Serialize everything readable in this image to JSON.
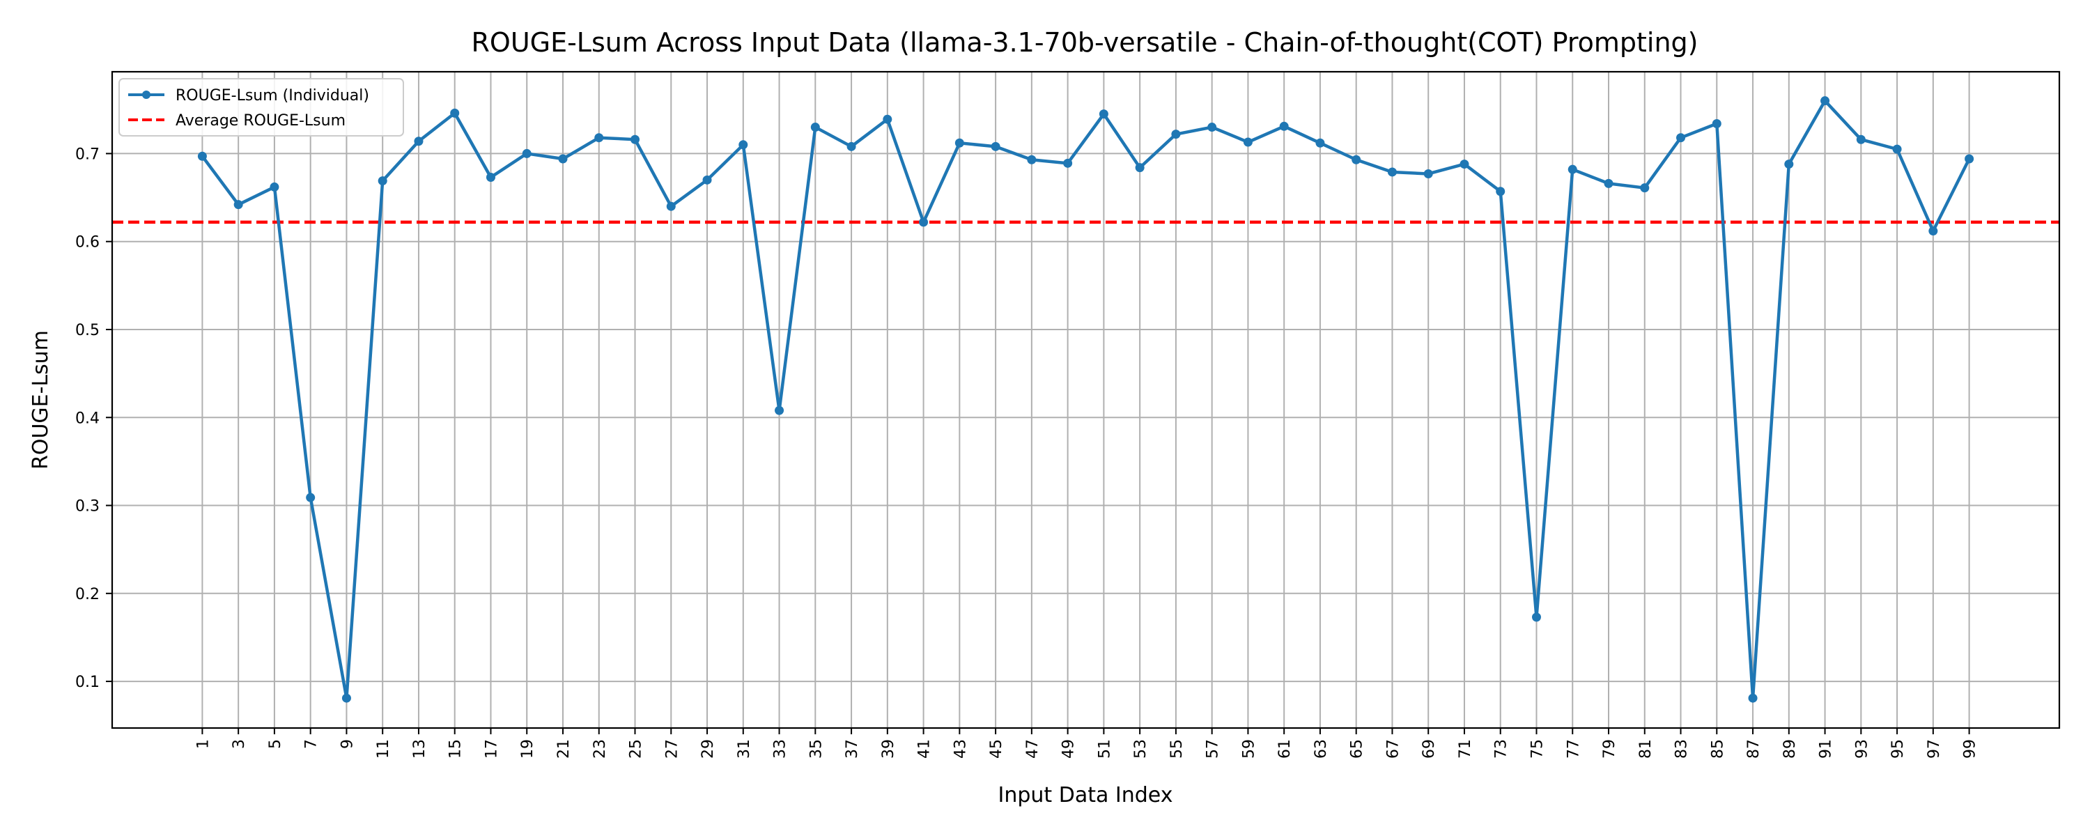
{
  "chart_data": {
    "type": "line",
    "title": "ROUGE-Lsum Across Input Data (llama-3.1-70b-versatile - Chain-of-thought(COT) Prompting)",
    "xlabel": "Input Data Index",
    "ylabel": "ROUGE-Lsum",
    "x": [
      1,
      3,
      5,
      7,
      9,
      11,
      13,
      15,
      17,
      19,
      21,
      23,
      25,
      27,
      29,
      31,
      33,
      35,
      37,
      39,
      41,
      43,
      45,
      47,
      49,
      51,
      53,
      55,
      57,
      59,
      61,
      63,
      65,
      67,
      69,
      71,
      73,
      75,
      77,
      79,
      81,
      83,
      85,
      87,
      89,
      91,
      93,
      95,
      97,
      99
    ],
    "xlim": [
      -4,
      104
    ],
    "ylim": [
      0.047,
      0.793
    ],
    "yticks": [
      0.1,
      0.2,
      0.3,
      0.4,
      0.5,
      0.6,
      0.7
    ],
    "ytick_labels": [
      "0.1",
      "0.2",
      "0.3",
      "0.4",
      "0.5",
      "0.6",
      "0.7"
    ],
    "grid": true,
    "legend_position": "top-left",
    "series": [
      {
        "name": "ROUGE-Lsum (Individual)",
        "color": "#1f77b4",
        "style": "solid-with-markers",
        "values": [
          0.697,
          0.642,
          0.662,
          0.309,
          0.081,
          0.669,
          0.714,
          0.746,
          0.673,
          0.7,
          0.694,
          0.718,
          0.716,
          0.64,
          0.67,
          0.71,
          0.408,
          0.73,
          0.708,
          0.739,
          0.622,
          0.712,
          0.708,
          0.693,
          0.689,
          0.745,
          0.684,
          0.722,
          0.73,
          0.713,
          0.731,
          0.712,
          0.693,
          0.679,
          0.677,
          0.688,
          0.657,
          0.173,
          0.682,
          0.666,
          0.661,
          0.718,
          0.734,
          0.081,
          0.688,
          0.76,
          0.716,
          0.705,
          0.612,
          0.694
        ]
      },
      {
        "name": "Average ROUGE-Lsum",
        "color": "#ff0000",
        "style": "dashed",
        "value": 0.622
      }
    ]
  }
}
